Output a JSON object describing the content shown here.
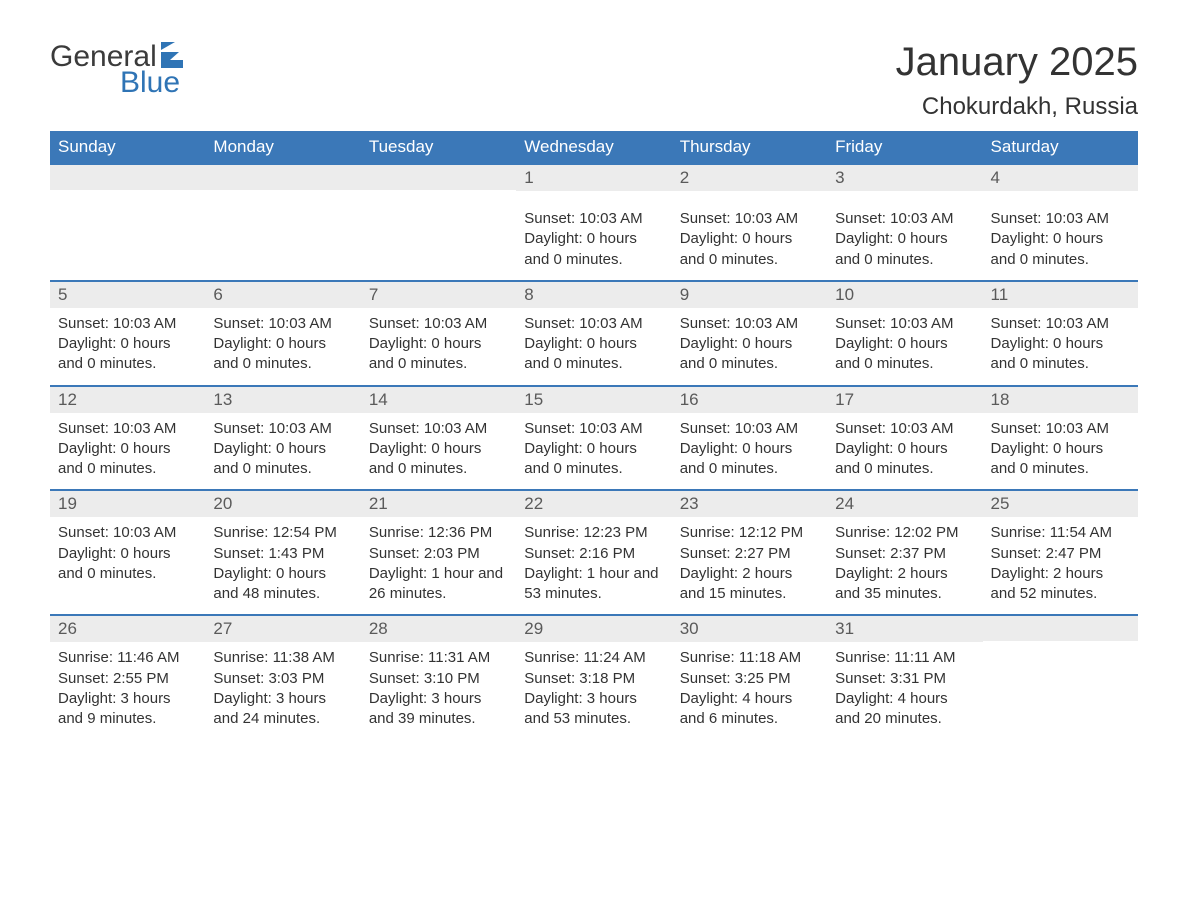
{
  "brand": {
    "general": "General",
    "blue": "Blue"
  },
  "title": "January 2025",
  "location": "Chokurdakh, Russia",
  "colors": {
    "header_bg": "#3b78b8",
    "header_text": "#ffffff",
    "daynum_bg": "#ececec",
    "daynum_text": "#5a5a5a",
    "body_text": "#333333",
    "rule": "#3b78b8",
    "logo_blue": "#2f74b5",
    "logo_dark": "#3b3b3b",
    "page_bg": "#ffffff"
  },
  "typography": {
    "title_fontsize": 40,
    "location_fontsize": 24,
    "header_fontsize": 17,
    "daynum_fontsize": 17,
    "body_fontsize": 15,
    "logo_fontsize": 30
  },
  "weekdays": [
    "Sunday",
    "Monday",
    "Tuesday",
    "Wednesday",
    "Thursday",
    "Friday",
    "Saturday"
  ],
  "weeks": [
    [
      {
        "n": "",
        "lines": []
      },
      {
        "n": "",
        "lines": []
      },
      {
        "n": "",
        "lines": []
      },
      {
        "n": "1",
        "lines": [
          "Sunset: 10:03 AM",
          "Daylight: 0 hours and 0 minutes."
        ]
      },
      {
        "n": "2",
        "lines": [
          "Sunset: 10:03 AM",
          "Daylight: 0 hours and 0 minutes."
        ]
      },
      {
        "n": "3",
        "lines": [
          "Sunset: 10:03 AM",
          "Daylight: 0 hours and 0 minutes."
        ]
      },
      {
        "n": "4",
        "lines": [
          "Sunset: 10:03 AM",
          "Daylight: 0 hours and 0 minutes."
        ]
      }
    ],
    [
      {
        "n": "5",
        "lines": [
          "Sunset: 10:03 AM",
          "Daylight: 0 hours and 0 minutes."
        ]
      },
      {
        "n": "6",
        "lines": [
          "Sunset: 10:03 AM",
          "Daylight: 0 hours and 0 minutes."
        ]
      },
      {
        "n": "7",
        "lines": [
          "Sunset: 10:03 AM",
          "Daylight: 0 hours and 0 minutes."
        ]
      },
      {
        "n": "8",
        "lines": [
          "Sunset: 10:03 AM",
          "Daylight: 0 hours and 0 minutes."
        ]
      },
      {
        "n": "9",
        "lines": [
          "Sunset: 10:03 AM",
          "Daylight: 0 hours and 0 minutes."
        ]
      },
      {
        "n": "10",
        "lines": [
          "Sunset: 10:03 AM",
          "Daylight: 0 hours and 0 minutes."
        ]
      },
      {
        "n": "11",
        "lines": [
          "Sunset: 10:03 AM",
          "Daylight: 0 hours and 0 minutes."
        ]
      }
    ],
    [
      {
        "n": "12",
        "lines": [
          "Sunset: 10:03 AM",
          "Daylight: 0 hours and 0 minutes."
        ]
      },
      {
        "n": "13",
        "lines": [
          "Sunset: 10:03 AM",
          "Daylight: 0 hours and 0 minutes."
        ]
      },
      {
        "n": "14",
        "lines": [
          "Sunset: 10:03 AM",
          "Daylight: 0 hours and 0 minutes."
        ]
      },
      {
        "n": "15",
        "lines": [
          "Sunset: 10:03 AM",
          "Daylight: 0 hours and 0 minutes."
        ]
      },
      {
        "n": "16",
        "lines": [
          "Sunset: 10:03 AM",
          "Daylight: 0 hours and 0 minutes."
        ]
      },
      {
        "n": "17",
        "lines": [
          "Sunset: 10:03 AM",
          "Daylight: 0 hours and 0 minutes."
        ]
      },
      {
        "n": "18",
        "lines": [
          "Sunset: 10:03 AM",
          "Daylight: 0 hours and 0 minutes."
        ]
      }
    ],
    [
      {
        "n": "19",
        "lines": [
          "Sunset: 10:03 AM",
          "Daylight: 0 hours and 0 minutes."
        ]
      },
      {
        "n": "20",
        "lines": [
          "Sunrise: 12:54 PM",
          "Sunset: 1:43 PM",
          "Daylight: 0 hours and 48 minutes."
        ]
      },
      {
        "n": "21",
        "lines": [
          "Sunrise: 12:36 PM",
          "Sunset: 2:03 PM",
          "Daylight: 1 hour and 26 minutes."
        ]
      },
      {
        "n": "22",
        "lines": [
          "Sunrise: 12:23 PM",
          "Sunset: 2:16 PM",
          "Daylight: 1 hour and 53 minutes."
        ]
      },
      {
        "n": "23",
        "lines": [
          "Sunrise: 12:12 PM",
          "Sunset: 2:27 PM",
          "Daylight: 2 hours and 15 minutes."
        ]
      },
      {
        "n": "24",
        "lines": [
          "Sunrise: 12:02 PM",
          "Sunset: 2:37 PM",
          "Daylight: 2 hours and 35 minutes."
        ]
      },
      {
        "n": "25",
        "lines": [
          "Sunrise: 11:54 AM",
          "Sunset: 2:47 PM",
          "Daylight: 2 hours and 52 minutes."
        ]
      }
    ],
    [
      {
        "n": "26",
        "lines": [
          "Sunrise: 11:46 AM",
          "Sunset: 2:55 PM",
          "Daylight: 3 hours and 9 minutes."
        ]
      },
      {
        "n": "27",
        "lines": [
          "Sunrise: 11:38 AM",
          "Sunset: 3:03 PM",
          "Daylight: 3 hours and 24 minutes."
        ]
      },
      {
        "n": "28",
        "lines": [
          "Sunrise: 11:31 AM",
          "Sunset: 3:10 PM",
          "Daylight: 3 hours and 39 minutes."
        ]
      },
      {
        "n": "29",
        "lines": [
          "Sunrise: 11:24 AM",
          "Sunset: 3:18 PM",
          "Daylight: 3 hours and 53 minutes."
        ]
      },
      {
        "n": "30",
        "lines": [
          "Sunrise: 11:18 AM",
          "Sunset: 3:25 PM",
          "Daylight: 4 hours and 6 minutes."
        ]
      },
      {
        "n": "31",
        "lines": [
          "Sunrise: 11:11 AM",
          "Sunset: 3:31 PM",
          "Daylight: 4 hours and 20 minutes."
        ]
      },
      {
        "n": "",
        "lines": []
      }
    ]
  ]
}
